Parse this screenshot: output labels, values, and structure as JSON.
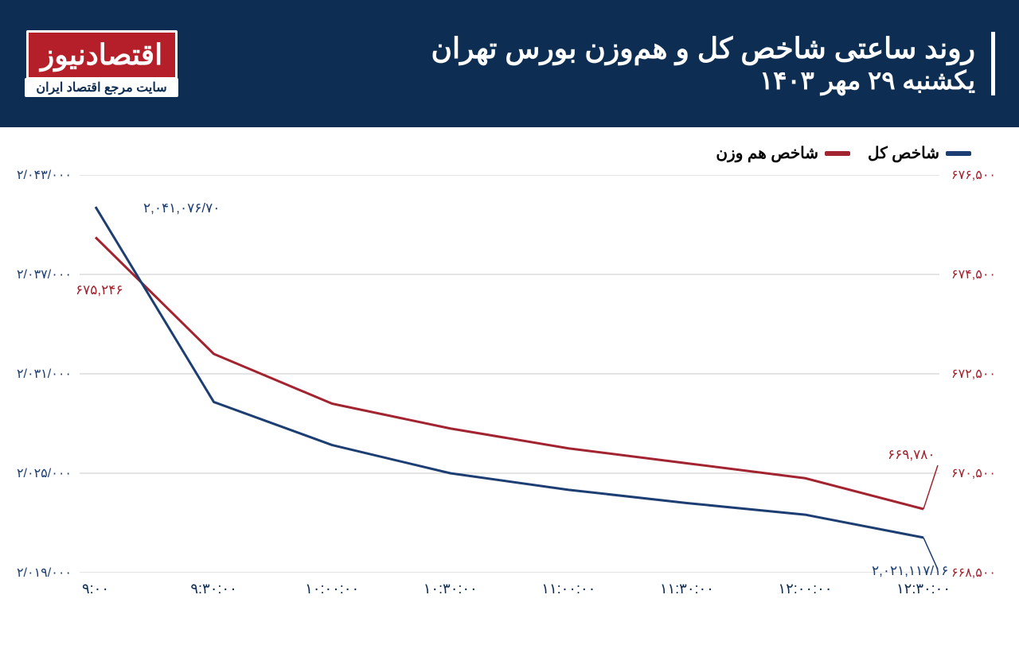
{
  "header": {
    "bg_color": "#0d2d52",
    "logo_text": "اقتصادنیوز",
    "logo_subtitle": "سایت مرجع اقتصاد ایران",
    "logo_bg": "#b41f2a",
    "title_line1": "روند ساعتی شاخص کل و هم‌وزن بورس تهران",
    "title_line2": "یکشنبه ۲۹ مهر ۱۴۰۳"
  },
  "legend": {
    "series1": {
      "label": "شاخص کل",
      "color": "#1d3e72"
    },
    "series2": {
      "label": "شاخص هم وزن",
      "color": "#a22430"
    }
  },
  "chart": {
    "type": "line",
    "background_color": "#ffffff",
    "grid_color": "#c9c9c9",
    "line_width": 3,
    "x_labels": [
      "۹:۰۰",
      "۹:۳۰:۰۰",
      "۱۰:۰۰:۰۰",
      "۱۰:۳۰:۰۰",
      "۱۱:۰۰:۰۰",
      "۱۱:۳۰:۰۰",
      "۱۲:۰۰:۰۰",
      "۱۲:۳۰:۰۰"
    ],
    "y_left": {
      "color": "#1d3e72",
      "min": 2019000,
      "max": 2043000,
      "ticks": [
        2019000,
        2025000,
        2031000,
        2037000,
        2043000
      ],
      "tick_labels": [
        "۲/۰۱۹/۰۰۰",
        "۲/۰۲۵/۰۰۰",
        "۲/۰۳۱/۰۰۰",
        "۲/۰۳۷/۰۰۰",
        "۲/۰۴۳/۰۰۰"
      ]
    },
    "y_right": {
      "color": "#a22430",
      "min": 668500,
      "max": 676500,
      "ticks": [
        668500,
        670500,
        672500,
        674500,
        676500
      ],
      "tick_labels": [
        "۶۶۸,۵۰۰",
        "۶۷۰,۵۰۰",
        "۶۷۲,۵۰۰",
        "۶۷۴,۵۰۰",
        "۶۷۶,۵۰۰"
      ]
    },
    "series_kol": {
      "color": "#1d3e72",
      "values": [
        2041077,
        2029300,
        2026700,
        2025000,
        2024000,
        2023200,
        2022500,
        2021117
      ]
    },
    "series_hamvazn": {
      "color": "#a22430",
      "values": [
        675246,
        672900,
        671900,
        671400,
        671000,
        670700,
        670400,
        669780
      ]
    },
    "annotations": {
      "kol_start": "۲,۰۴۱,۰۷۶/۷۰",
      "kol_end": "۲,۰۲۱,۱۱۷/۱۶",
      "ham_start": "۶۷۵,۲۴۶",
      "ham_end": "۶۶۹,۷۸۰"
    }
  }
}
